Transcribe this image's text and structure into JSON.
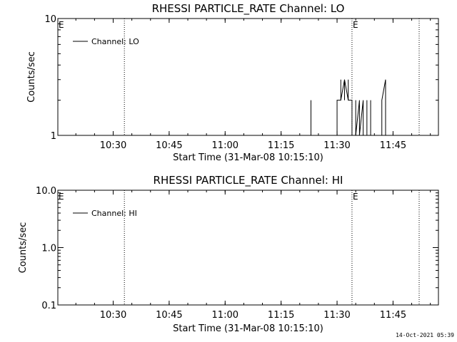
{
  "footer": {
    "timestamp": "14-Oct-2021 05:39"
  },
  "chart_data": [
    {
      "type": "line",
      "title": "RHESSI PARTICLE_RATE Channel: LO",
      "xlabel": "Start Time (31-Mar-08 10:15:10)",
      "ylabel": "Counts/sec",
      "yscale": "log",
      "ylim": [
        1,
        10
      ],
      "xlim": [
        "10:15:10",
        "11:57:10"
      ],
      "xtick_labels": [
        "10:30",
        "10:45",
        "11:00",
        "11:15",
        "11:30",
        "11:45"
      ],
      "ytick_labels": [
        "1",
        "10"
      ],
      "legend": {
        "entries": [
          "Channel: LO"
        ],
        "position": "top-left"
      },
      "event_marks": [
        "10:33",
        "11:34",
        "11:52"
      ],
      "event_labels": [
        {
          "text": "E",
          "at": "10:15:10"
        },
        {
          "text": "E",
          "at": "11:34"
        }
      ],
      "series": [
        {
          "name": "Channel: LO",
          "color": "#000000",
          "x": [
            "11:23",
            "11:23",
            "11:23",
            "11:30",
            "11:30",
            "11:31",
            "11:31",
            "11:31",
            "11:32",
            "11:32",
            "11:32",
            "11:33",
            "11:33",
            "11:33",
            "11:34",
            "11:34",
            "11:34",
            "11:35",
            "11:35",
            "11:35",
            "11:35",
            "11:36",
            "11:36",
            "11:36",
            "11:36",
            "11:37",
            "11:37",
            "11:37",
            "11:37",
            "11:38",
            "11:38",
            "11:38",
            "11:39",
            "11:39",
            "11:39",
            "11:42",
            "11:42",
            "11:43",
            "11:43",
            "11:43",
            "11:44"
          ],
          "y": [
            1,
            2,
            1,
            1,
            2,
            2,
            3,
            2,
            3,
            2,
            3,
            2,
            3,
            2,
            2,
            2,
            1,
            1,
            2,
            2,
            1,
            2,
            2,
            1,
            1,
            2,
            1,
            1,
            1,
            1,
            2,
            1,
            1,
            2,
            1,
            1,
            2,
            3,
            2,
            1,
            1
          ]
        }
      ]
    },
    {
      "type": "line",
      "title": "RHESSI PARTICLE_RATE Channel: HI",
      "xlabel": "Start Time (31-Mar-08 10:15:10)",
      "ylabel": "Counts/sec",
      "yscale": "log",
      "ylim": [
        0.1,
        10
      ],
      "xlim": [
        "10:15:10",
        "11:57:10"
      ],
      "xtick_labels": [
        "10:30",
        "10:45",
        "11:00",
        "11:15",
        "11:30",
        "11:45"
      ],
      "ytick_labels": [
        "0.1",
        "1.0",
        "10.0"
      ],
      "legend": {
        "entries": [
          "Channel: HI"
        ],
        "position": "top-left"
      },
      "event_marks": [
        "10:33",
        "11:34",
        "11:52"
      ],
      "event_labels": [
        {
          "text": "E",
          "at": "10:15:10"
        },
        {
          "text": "E",
          "at": "11:34"
        }
      ],
      "series": [
        {
          "name": "Channel: HI",
          "color": "#000000",
          "x": [],
          "y": []
        }
      ]
    }
  ]
}
